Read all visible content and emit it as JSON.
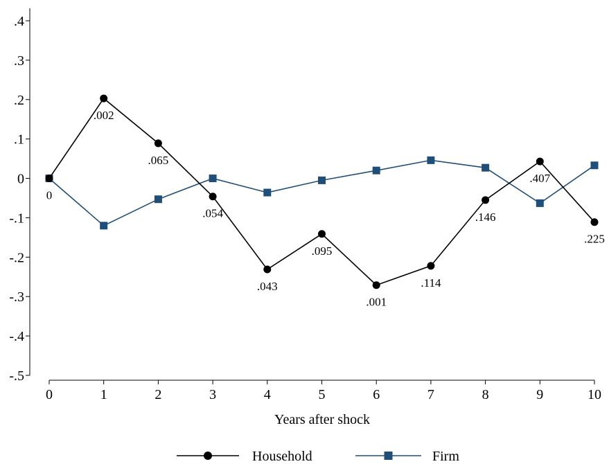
{
  "chart_data": {
    "type": "line",
    "xlabel": "Years after shock",
    "ylabel": "",
    "x": [
      0,
      1,
      2,
      3,
      4,
      5,
      6,
      7,
      8,
      9,
      10
    ],
    "xlim": [
      0,
      10
    ],
    "ylim": [
      -0.5,
      0.4
    ],
    "xticks": [
      "0",
      "1",
      "2",
      "3",
      "4",
      "5",
      "6",
      "7",
      "8",
      "9",
      "10"
    ],
    "yticks": [
      {
        "value": 0.4,
        "label": ".4"
      },
      {
        "value": 0.3,
        "label": ".3"
      },
      {
        "value": 0.2,
        "label": ".2"
      },
      {
        "value": 0.1,
        "label": ".1"
      },
      {
        "value": 0,
        "label": "0"
      },
      {
        "value": -0.1,
        "label": "-.1"
      },
      {
        "value": -0.2,
        "label": "-.2"
      },
      {
        "value": -0.3,
        "label": "-.3"
      },
      {
        "value": -0.4,
        "label": "-.4"
      },
      {
        "value": -0.5,
        "label": "-.5"
      }
    ],
    "grid": false,
    "legend_position": "bottom",
    "series": [
      {
        "name": "Household",
        "color": "#000000",
        "marker": "circle",
        "values": [
          0,
          0.203,
          0.089,
          -0.046,
          -0.231,
          -0.141,
          -0.271,
          -0.222,
          -0.055,
          0.043,
          -0.111
        ],
        "point_labels": [
          "0",
          ".002",
          ".065",
          ".054",
          ".043",
          ".095",
          ".001",
          ".114",
          ".146",
          ".407",
          ".225"
        ]
      },
      {
        "name": "Firm",
        "color": "#1f4e79",
        "marker": "square",
        "values": [
          0,
          -0.12,
          -0.053,
          0,
          -0.036,
          -0.005,
          0.02,
          0.046,
          0.027,
          -0.063,
          0.033
        ]
      }
    ]
  }
}
